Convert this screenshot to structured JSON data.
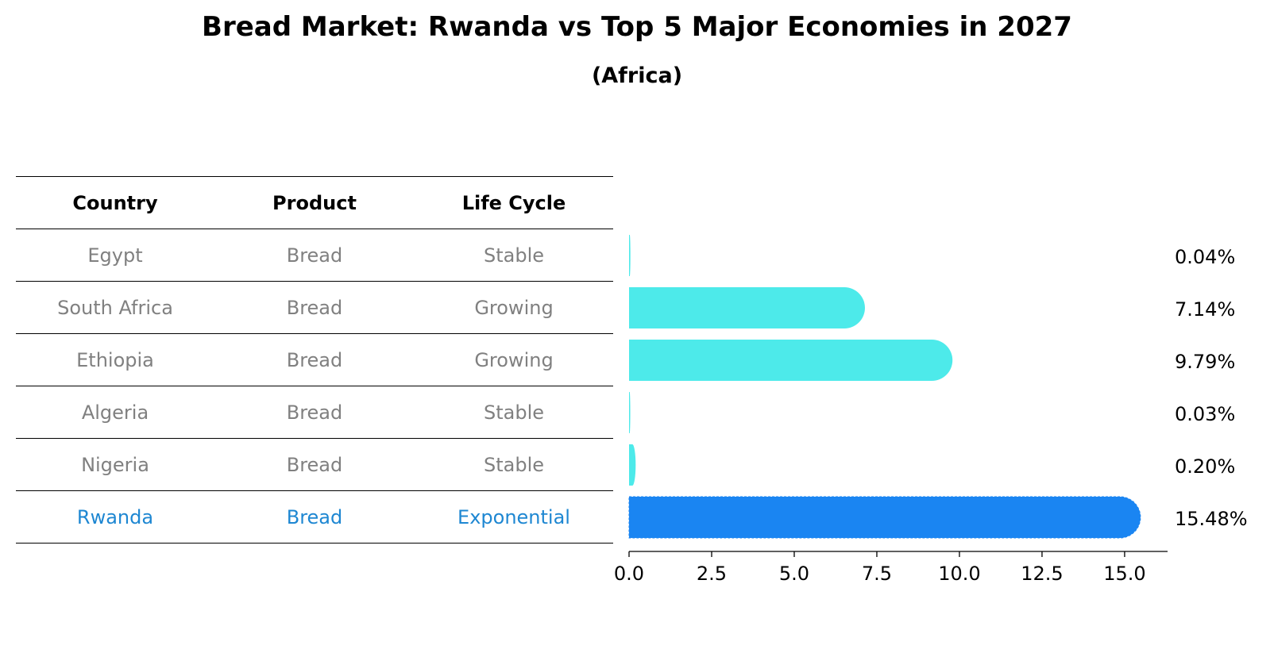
{
  "title": "Bread Market: Rwanda vs Top 5 Major Economies in 2027",
  "subtitle": "(Africa)",
  "table": {
    "headers": [
      "Country",
      "Product",
      "Life Cycle"
    ],
    "rows": [
      {
        "country": "Egypt",
        "product": "Bread",
        "life_cycle": "Stable"
      },
      {
        "country": "South Africa",
        "product": "Bread",
        "life_cycle": "Growing"
      },
      {
        "country": "Ethiopia",
        "product": "Bread",
        "life_cycle": "Growing"
      },
      {
        "country": "Algeria",
        "product": "Bread",
        "life_cycle": "Stable"
      },
      {
        "country": "Nigeria",
        "product": "Bread",
        "life_cycle": "Stable"
      },
      {
        "country": "Rwanda",
        "product": "Bread",
        "life_cycle": "Exponential"
      }
    ]
  },
  "colors": {
    "bar": "#4deaea",
    "highlight_bar": "#1a85f2",
    "highlight_text": "#1e87d2",
    "muted_text": "#808080"
  },
  "chart_data": {
    "type": "bar",
    "orientation": "horizontal",
    "categories": [
      "Egypt",
      "South Africa",
      "Ethiopia",
      "Algeria",
      "Nigeria",
      "Rwanda"
    ],
    "values": [
      0.04,
      7.14,
      9.79,
      0.03,
      0.2,
      15.48
    ],
    "value_labels": [
      "0.04%",
      "7.14%",
      "9.79%",
      "0.03%",
      "0.20%",
      "15.48%"
    ],
    "highlight": "Rwanda",
    "xlim": [
      0,
      16.3
    ],
    "xticks": [
      0.0,
      2.5,
      5.0,
      7.5,
      10.0,
      12.5,
      15.0
    ],
    "xtick_labels": [
      "0.0",
      "2.5",
      "5.0",
      "7.5",
      "10.0",
      "12.5",
      "15.0"
    ],
    "xlabel": "",
    "ylabel": ""
  }
}
